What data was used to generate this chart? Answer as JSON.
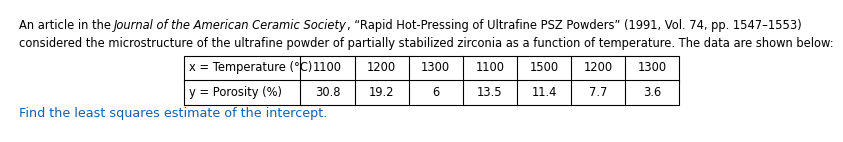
{
  "line1_part1": "An article in the ",
  "line1_italic1": "Journal of the American Ceramic Society",
  "line1_part2": ", “Rapid Hot-Pressing of Ultrafine PSZ Powders” (1991, Vol. 74, pp. 1547–1553)",
  "line2": "considered the microstructure of the ultrafine powder of partially stabilized zirconia as a function of temperature. The data are shown below:",
  "x_label": "x = Temperature (°C)",
  "y_label": "y = Porosity (%)",
  "x_values": [
    "1100",
    "1200",
    "1300",
    "1100",
    "1500",
    "1200",
    "1300"
  ],
  "y_values": [
    "30.8",
    "19.2",
    "6",
    "13.5",
    "11.4",
    "7.7",
    "3.6"
  ],
  "footer_text": "Find the least squares estimate of the intercept.",
  "footer_color": "#1060B0",
  "background_color": "#ffffff",
  "text_color": "#000000",
  "table_border_color": "#000000",
  "font_size_paragraph": 8.3,
  "font_size_table": 8.3,
  "font_size_footer": 9.2
}
